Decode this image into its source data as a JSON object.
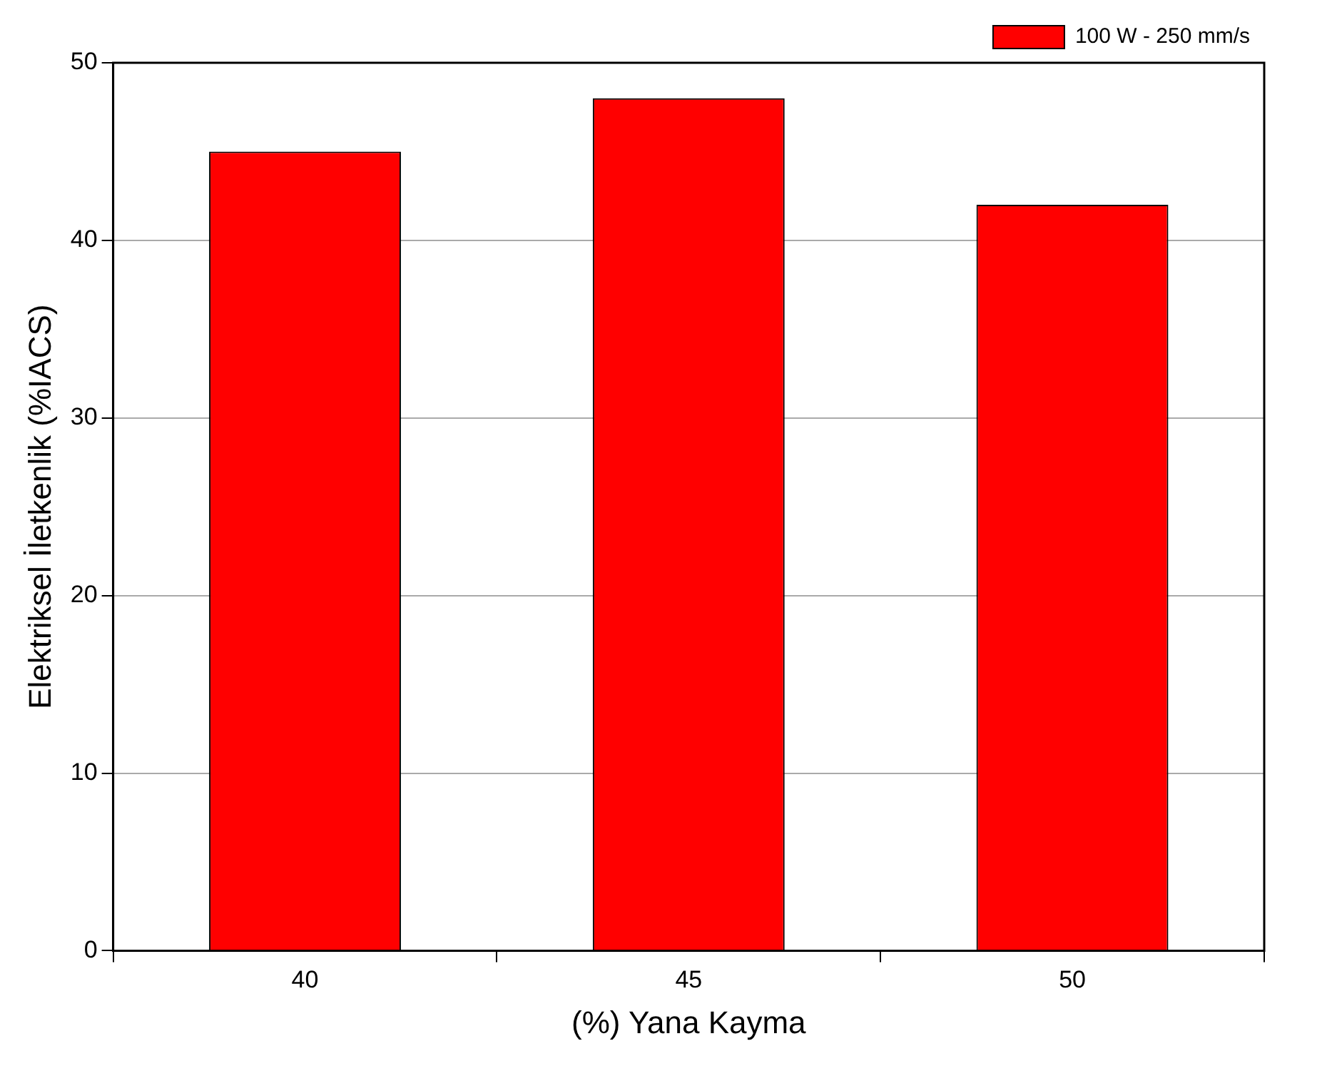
{
  "chart_data": {
    "type": "bar",
    "xlabel": "(%) Yana Kayma",
    "ylabel": "Elektriksel İletkenlik (%IACS)",
    "categories": [
      "40",
      "45",
      "50"
    ],
    "series": [
      {
        "name": "100 W - 250 mm/s",
        "color": "#ff0000",
        "values": [
          45,
          48,
          42
        ]
      }
    ],
    "ylim": [
      0,
      50
    ],
    "yticks": [
      0,
      10,
      20,
      30,
      40,
      50
    ],
    "grid": "y",
    "legend": "top right"
  }
}
